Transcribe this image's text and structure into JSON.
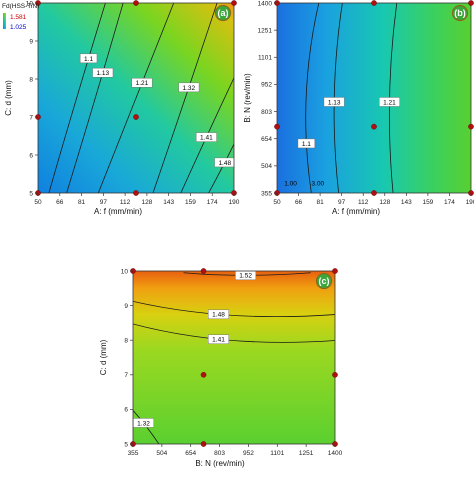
{
  "legend": {
    "title": "Fd(HSS-TiN)",
    "max": "1.581",
    "min": "1.025",
    "max_color": "#cc0000",
    "min_color": "#0000cc"
  },
  "chart_data": [
    {
      "type": "contour",
      "panel_label": "a",
      "xlabel": "A: f (mm/min)",
      "ylabel": "C: d (mm)",
      "xlim": [
        50,
        190
      ],
      "ylim": [
        5,
        10
      ],
      "x_ticks": [
        "50",
        "66",
        "81",
        "97",
        "112",
        "128",
        "143",
        "159",
        "174",
        "190"
      ],
      "y_ticks": [
        "5",
        "6",
        "7",
        "8",
        "9",
        "10"
      ],
      "contour_levels": [
        "1.1",
        "1.13",
        "1.21",
        "1.32",
        "1.41",
        "1.48"
      ],
      "design_points": [
        [
          50,
          5
        ],
        [
          50,
          7
        ],
        [
          50,
          10
        ],
        [
          120,
          5
        ],
        [
          120,
          7
        ],
        [
          120,
          10
        ],
        [
          190,
          5
        ],
        [
          190,
          10
        ]
      ],
      "value_range": [
        1.025,
        1.581
      ]
    },
    {
      "type": "contour",
      "panel_label": "b",
      "xlabel": "A: f (mm/min)",
      "ylabel": "B: N (rev/min)",
      "xlim": [
        50,
        190
      ],
      "ylim": [
        355,
        1400
      ],
      "x_ticks": [
        "50",
        "66",
        "81",
        "97",
        "112",
        "128",
        "143",
        "159",
        "174",
        "190"
      ],
      "y_ticks": [
        "355",
        "504",
        "654",
        "803",
        "952",
        "1101",
        "1251",
        "1400"
      ],
      "contour_levels": [
        "1.1",
        "1.13",
        "1.21"
      ],
      "annotations": [
        "1.00",
        "3.00"
      ],
      "design_points": [
        [
          50,
          355
        ],
        [
          50,
          720
        ],
        [
          50,
          1400
        ],
        [
          120,
          355
        ],
        [
          120,
          720
        ],
        [
          120,
          1400
        ],
        [
          190,
          355
        ],
        [
          190,
          720
        ],
        [
          190,
          1400
        ]
      ],
      "value_range": [
        1.025,
        1.581
      ]
    },
    {
      "type": "contour",
      "panel_label": "c",
      "xlabel": "B: N (rev/min)",
      "ylabel": "C: d (mm)",
      "xlim": [
        355,
        1400
      ],
      "ylim": [
        5,
        10
      ],
      "x_ticks": [
        "355",
        "504",
        "654",
        "803",
        "952",
        "1101",
        "1251",
        "1400"
      ],
      "y_ticks": [
        "5",
        "6",
        "7",
        "8",
        "9",
        "10"
      ],
      "contour_levels": [
        "1.32",
        "1.41",
        "1.48",
        "1.52"
      ],
      "design_points": [
        [
          355,
          5
        ],
        [
          355,
          10
        ],
        [
          720,
          5
        ],
        [
          720,
          7
        ],
        [
          720,
          10
        ],
        [
          1400,
          5
        ],
        [
          1400,
          7
        ],
        [
          1400,
          10
        ]
      ],
      "value_range": [
        1.025,
        1.581
      ]
    }
  ]
}
